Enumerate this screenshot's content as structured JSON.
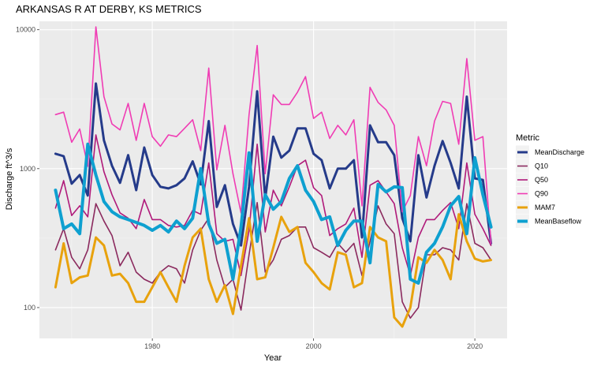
{
  "chart_data": {
    "type": "line",
    "title": "ARKANSAS R AT DERBY, KS  METRICS",
    "xlabel": "Year",
    "ylabel": "Discharge ft^3/s",
    "y_scale": "log10",
    "xlim": [
      1966,
      2024
    ],
    "ylim": [
      60,
      11500
    ],
    "x_ticks": [
      1980,
      2000,
      2020
    ],
    "y_ticks": [
      100,
      1000,
      10000
    ],
    "grid": true,
    "legend": {
      "title": "Metric",
      "position": "right"
    },
    "x": [
      1968,
      1969,
      1970,
      1971,
      1972,
      1973,
      1974,
      1975,
      1976,
      1977,
      1978,
      1979,
      1980,
      1981,
      1982,
      1983,
      1984,
      1985,
      1986,
      1987,
      1988,
      1989,
      1990,
      1991,
      1992,
      1993,
      1994,
      1995,
      1996,
      1997,
      1998,
      1999,
      2000,
      2001,
      2002,
      2003,
      2004,
      2005,
      2006,
      2007,
      2008,
      2009,
      2010,
      2011,
      2012,
      2013,
      2014,
      2015,
      2016,
      2017,
      2018,
      2019,
      2020,
      2021,
      2022
    ],
    "series": [
      {
        "name": "MeanDischarge",
        "color": "#253b8a",
        "width": 3.0,
        "values": [
          1280,
          1230,
          780,
          900,
          640,
          4100,
          1600,
          1050,
          790,
          1250,
          700,
          1420,
          900,
          740,
          720,
          760,
          850,
          1130,
          770,
          2200,
          530,
          760,
          400,
          280,
          740,
          3600,
          610,
          1700,
          1200,
          1350,
          1950,
          1950,
          1280,
          1150,
          720,
          1000,
          1000,
          1150,
          320,
          2050,
          1550,
          1550,
          1250,
          440,
          300,
          1250,
          620,
          1050,
          1580,
          1100,
          720,
          3300,
          850,
          830,
          290
        ]
      },
      {
        "name": "Q10",
        "color": "#8b2a5e",
        "width": 1.6,
        "values": [
          260,
          370,
          230,
          190,
          260,
          560,
          420,
          330,
          200,
          250,
          180,
          160,
          150,
          180,
          200,
          190,
          150,
          260,
          360,
          440,
          220,
          140,
          160,
          96,
          240,
          570,
          180,
          220,
          310,
          330,
          380,
          380,
          270,
          250,
          230,
          290,
          250,
          290,
          170,
          300,
          540,
          400,
          340,
          110,
          84,
          100,
          240,
          240,
          270,
          260,
          220,
          560,
          290,
          270,
          220
        ]
      },
      {
        "name": "Q50",
        "color": "#b01a7a",
        "width": 1.6,
        "values": [
          520,
          820,
          460,
          540,
          450,
          1750,
          950,
          650,
          480,
          440,
          370,
          600,
          430,
          430,
          390,
          380,
          390,
          500,
          470,
          1100,
          340,
          300,
          310,
          170,
          360,
          1500,
          350,
          700,
          540,
          740,
          1050,
          1150,
          730,
          640,
          330,
          370,
          400,
          520,
          230,
          760,
          820,
          680,
          560,
          270,
          170,
          320,
          430,
          430,
          500,
          570,
          370,
          1100,
          470,
          370,
          280
        ]
      },
      {
        "name": "Q90",
        "color": "#f03cb4",
        "width": 1.6,
        "values": [
          2450,
          2550,
          1550,
          1930,
          1040,
          10500,
          3300,
          2100,
          1900,
          2950,
          1600,
          2950,
          1700,
          1450,
          1750,
          1700,
          1950,
          2250,
          1350,
          5300,
          980,
          2050,
          920,
          480,
          2450,
          7700,
          920,
          3400,
          2900,
          2900,
          3550,
          4600,
          2300,
          2550,
          1650,
          2050,
          1750,
          2250,
          540,
          3850,
          3000,
          2650,
          2050,
          490,
          640,
          1700,
          1050,
          2200,
          3050,
          2950,
          1500,
          6200,
          1600,
          1700,
          290
        ]
      },
      {
        "name": "MAM7",
        "color": "#e8a20d",
        "width": 3.0,
        "values": [
          140,
          290,
          150,
          165,
          170,
          320,
          280,
          170,
          175,
          150,
          110,
          110,
          140,
          180,
          140,
          110,
          200,
          320,
          370,
          160,
          110,
          145,
          90,
          200,
          440,
          160,
          165,
          270,
          450,
          350,
          380,
          210,
          180,
          150,
          135,
          250,
          240,
          140,
          150,
          380,
          320,
          300,
          85,
          73,
          100,
          230,
          210,
          260,
          220,
          160,
          470,
          300,
          225,
          215,
          220
        ]
      },
      {
        "name": "MeanBaseflow",
        "color": "#0ea0d0",
        "width": 4.0,
        "values": [
          700,
          370,
          400,
          340,
          1500,
          900,
          580,
          490,
          450,
          430,
          410,
          390,
          360,
          390,
          350,
          420,
          370,
          440,
          1000,
          400,
          290,
          310,
          160,
          380,
          1300,
          300,
          650,
          510,
          580,
          850,
          1050,
          700,
          580,
          430,
          450,
          280,
          360,
          420,
          420,
          210,
          770,
          680,
          740,
          730,
          160,
          150,
          250,
          290,
          380,
          540,
          630,
          340,
          1200,
          650,
          380
        ]
      }
    ]
  }
}
